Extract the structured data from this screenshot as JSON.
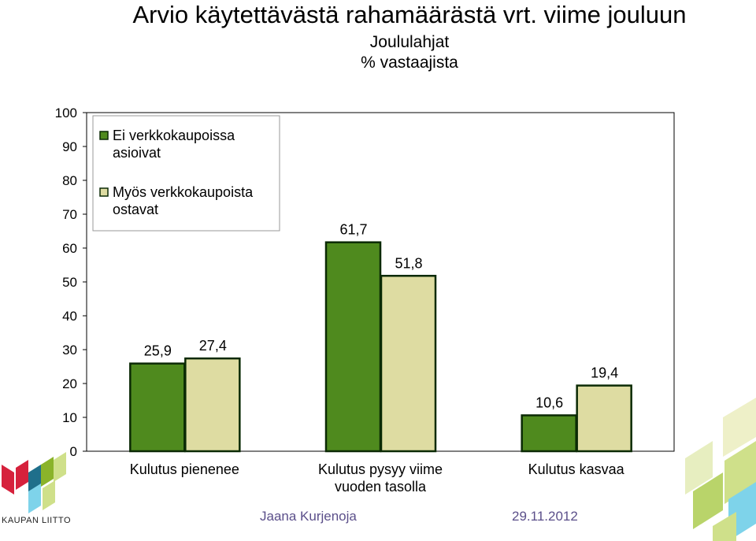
{
  "chart_data": {
    "type": "bar",
    "title": "Arvio käytettävästä rahamäärästä vrt. viime jouluun",
    "subtitle": "Joululahjat",
    "unit_label": "% vastaajista",
    "categories": [
      "Kulutus pienenee",
      "Kulutus pysyy viime vuoden tasolla",
      "Kulutus kasvaa"
    ],
    "series": [
      {
        "name": "Ei verkkokaupoissa asioivat",
        "values": [
          25.9,
          61.7,
          10.6
        ],
        "labels": [
          "25,9",
          "61,7",
          "10,6"
        ],
        "color": "#4f8a1e"
      },
      {
        "name": "Myös verkkokaupoista ostavat",
        "values": [
          27.4,
          51.8,
          19.4
        ],
        "labels": [
          "27,4",
          "51,8",
          "19,4"
        ],
        "color": "#dedca2"
      }
    ],
    "ylim": [
      0,
      100
    ],
    "yticks": [
      "0",
      "10",
      "20",
      "30",
      "40",
      "50",
      "60",
      "70",
      "80",
      "90",
      "100"
    ],
    "legend_position": "top-left",
    "grid": false
  },
  "footer": {
    "author": "Jaana Kurjenoja",
    "date": "29.11.2012",
    "logo_text": "KAUPAN LIITTO"
  },
  "colors": {
    "bar_outline": "#0b2a05",
    "footer_text": "#5b4f8a",
    "logo_red": "#d6213c",
    "logo_teal": "#1f6f8b",
    "logo_green": "#8ab32a",
    "logo_light": "#cfe08a",
    "logo_cyan": "#7ed3ea"
  }
}
